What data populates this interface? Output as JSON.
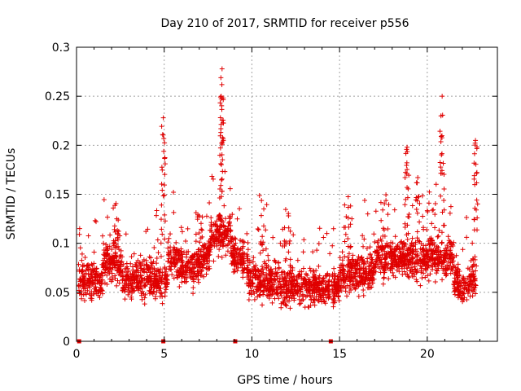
{
  "chart_data": {
    "type": "scatter",
    "title": "Day 210 of 2017, SRMTID for receiver p556",
    "xlabel": "GPS time / hours",
    "ylabel": "SRMTID / TECUs",
    "xlim": [
      0,
      24
    ],
    "ylim": [
      0,
      0.3
    ],
    "x_ticks": [
      0,
      5,
      10,
      15,
      20
    ],
    "x_tick_labels": [
      "0",
      "5",
      "10",
      "15",
      "20"
    ],
    "y_ticks": [
      0,
      0.05,
      0.1,
      0.15,
      0.2,
      0.25,
      0.3
    ],
    "y_tick_labels": [
      "0",
      "0.05",
      "0.1",
      "0.15",
      "0.2",
      "0.25",
      "0.3"
    ],
    "grid": true,
    "marker": "+",
    "series_color": "#e00000",
    "zero_points_x": [
      0.15,
      4.95,
      9.05,
      14.5
    ],
    "peaks": [
      {
        "x": 4.95,
        "y": 0.228
      },
      {
        "x": 8.3,
        "y": 0.278
      },
      {
        "x": 8.25,
        "y": 0.25
      },
      {
        "x": 20.85,
        "y": 0.25
      },
      {
        "x": 22.75,
        "y": 0.205
      },
      {
        "x": 18.85,
        "y": 0.198
      }
    ]
  }
}
